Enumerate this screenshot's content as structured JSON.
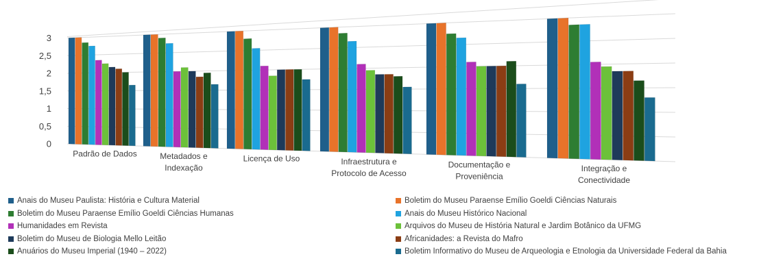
{
  "chart_data": {
    "type": "bar",
    "categories": [
      "Padrão de Dados",
      "Metadados e Indexação",
      "Licença de Uso",
      "Infraestrutura e Protocolo de Acesso",
      "Documentação e Proveniência",
      "Integração e Conectividade"
    ],
    "category_lines": [
      [
        "Padrão de Dados"
      ],
      [
        "Metadados e",
        "Indexação"
      ],
      [
        "Licença de Uso"
      ],
      [
        "Infraestrutura e",
        "Protocolo de Acesso"
      ],
      [
        "Documentação e",
        "Proveniência"
      ],
      [
        "Integração e",
        "Conectividade"
      ]
    ],
    "yticks": [
      "0",
      "0,5",
      "1",
      "1,5",
      "2",
      "2,5",
      "3"
    ],
    "ylim": [
      0,
      3
    ],
    "grid": true,
    "legend_position": "bottom",
    "series": [
      {
        "name": "Anais do Museu Paulista: História e Cultura Material",
        "color": "#1f5f8b",
        "values": [
          3.0,
          3.0,
          3.0,
          3.0,
          3.0,
          3.0
        ]
      },
      {
        "name": "Boletim do Museu Paraense Emílio Goeldi Ciências Naturais",
        "color": "#e8732a",
        "values": [
          3.0,
          3.0,
          3.0,
          3.0,
          3.0,
          3.0
        ]
      },
      {
        "name": "Boletim do Museu Paraense Emílio Goeldi Ciências Humanas",
        "color": "#2e7d32",
        "values": [
          2.85,
          2.9,
          2.8,
          2.85,
          2.75,
          2.85
        ]
      },
      {
        "name": "Anais do Museu Histórico Nacional",
        "color": "#1fa3e0",
        "values": [
          2.75,
          2.75,
          2.55,
          2.65,
          2.65,
          2.85
        ]
      },
      {
        "name": "Humanidades em Revista",
        "color": "#b130b8",
        "values": [
          2.35,
          2.0,
          2.1,
          2.1,
          2.1,
          2.05
        ]
      },
      {
        "name": "Arquivos do Museu de História Natural e Jardim Botânico da UFMG",
        "color": "#6cc13a",
        "values": [
          2.25,
          2.1,
          1.85,
          1.95,
          2.0,
          1.95
        ]
      },
      {
        "name": "Boletim do Museu de Biologia Mello Leitão",
        "color": "#1e3a5a",
        "values": [
          2.15,
          2.0,
          2.0,
          1.85,
          2.0,
          1.85
        ]
      },
      {
        "name": "Africanidades: a Revista do Mafro",
        "color": "#8b3d14",
        "values": [
          2.1,
          1.85,
          2.0,
          1.85,
          2.0,
          1.85
        ]
      },
      {
        "name": "Anuários do Museu Imperial (1940 – 2022)",
        "color": "#1b4d1b",
        "values": [
          2.0,
          1.95,
          2.0,
          1.8,
          2.1,
          1.65
        ]
      },
      {
        "name": "Boletim Informativo do Museu de Arqueologia e Etnologia da Universidade Federal da Bahia",
        "color": "#1a6b8f",
        "values": [
          1.65,
          1.65,
          1.75,
          1.55,
          1.6,
          1.3
        ]
      }
    ]
  }
}
